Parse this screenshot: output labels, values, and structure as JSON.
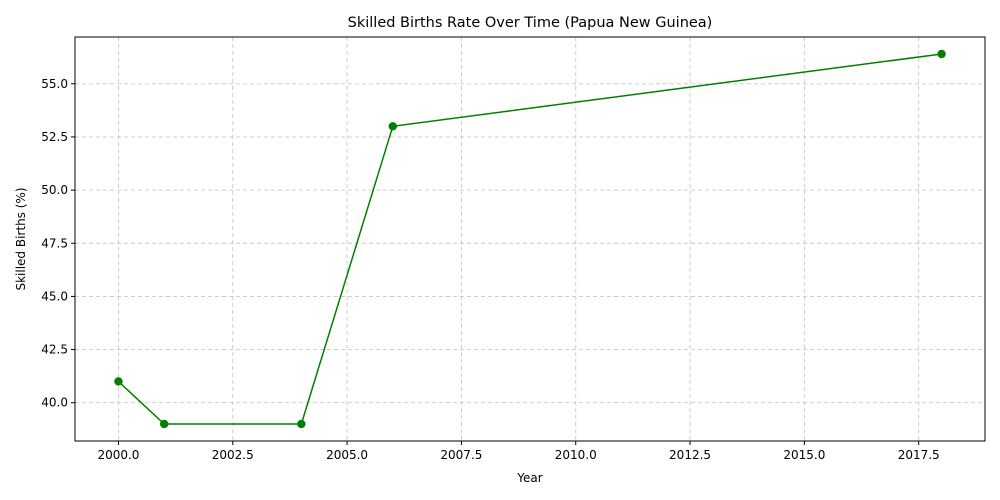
{
  "chart_data": {
    "type": "line",
    "title": "Skilled Births Rate Over Time (Papua New Guinea)",
    "xlabel": "Year",
    "ylabel": "Skilled Births (%)",
    "xlim": [
      1999.05,
      2018.95
    ],
    "ylim": [
      38.2,
      57.2
    ],
    "xticks": [
      2000.0,
      2002.5,
      2005.0,
      2007.5,
      2010.0,
      2012.5,
      2015.0,
      2017.5
    ],
    "xtick_labels": [
      "2000.0",
      "2002.5",
      "2005.0",
      "2007.5",
      "2010.0",
      "2012.5",
      "2015.0",
      "2017.5"
    ],
    "yticks": [
      40.0,
      42.5,
      45.0,
      47.5,
      50.0,
      52.5,
      55.0
    ],
    "ytick_labels": [
      "40.0",
      "42.5",
      "45.0",
      "47.5",
      "50.0",
      "52.5",
      "55.0"
    ],
    "grid": true,
    "series": [
      {
        "color": "#008000",
        "marker": "circle",
        "x": [
          2000,
          2001,
          2004,
          2006,
          2018
        ],
        "y": [
          41,
          39,
          39,
          53,
          56.4
        ]
      }
    ]
  }
}
